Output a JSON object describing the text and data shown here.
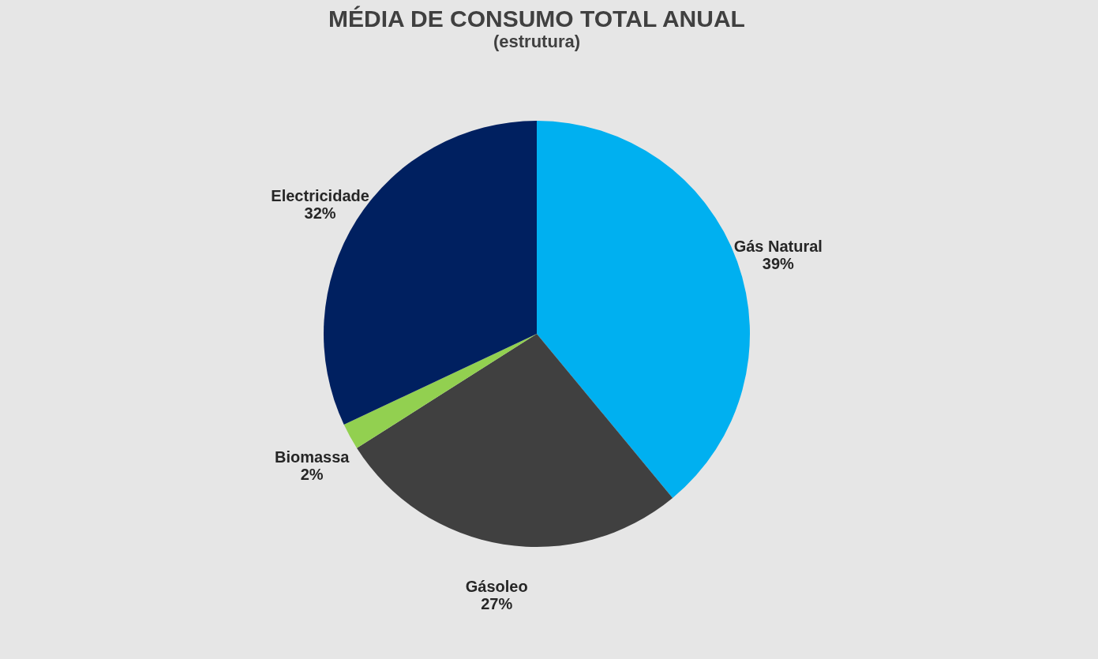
{
  "chart_data": {
    "type": "pie",
    "title": "MÉDIA DE CONSUMO TOTAL ANUAL",
    "subtitle": "(estrutura)",
    "categories": [
      "Gás Natural",
      "Gásoleo",
      "Biomassa",
      "Electricidade"
    ],
    "values": [
      39,
      27,
      2,
      32
    ],
    "colors": [
      "#00b0f0",
      "#404040",
      "#92d050",
      "#002060"
    ],
    "value_labels": [
      "39%",
      "27%",
      "2%",
      "32%"
    ],
    "legend": false
  }
}
